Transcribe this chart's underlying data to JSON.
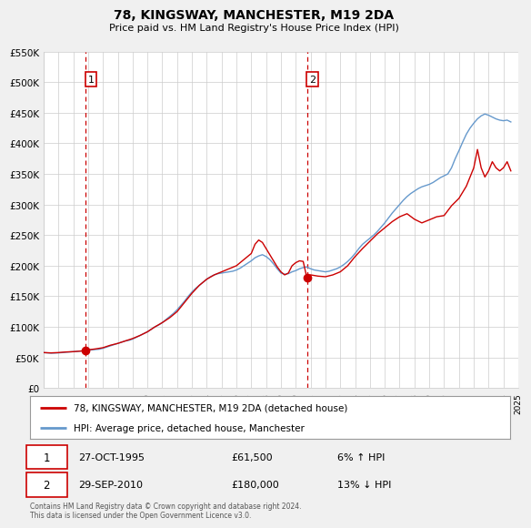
{
  "title": "78, KINGSWAY, MANCHESTER, M19 2DA",
  "subtitle": "Price paid vs. HM Land Registry's House Price Index (HPI)",
  "legend_entry1": "78, KINGSWAY, MANCHESTER, M19 2DA (detached house)",
  "legend_entry2": "HPI: Average price, detached house, Manchester",
  "annotation1_label": "1",
  "annotation1_date": "27-OCT-1995",
  "annotation1_price": "£61,500",
  "annotation1_hpi": "6% ↑ HPI",
  "annotation2_label": "2",
  "annotation2_date": "29-SEP-2010",
  "annotation2_price": "£180,000",
  "annotation2_hpi": "13% ↓ HPI",
  "sale1_year": 1995.82,
  "sale1_value": 61500,
  "sale2_year": 2010.75,
  "sale2_value": 180000,
  "vline1_year": 1995.82,
  "vline2_year": 2010.75,
  "xmin": 1993,
  "xmax": 2025,
  "ymin": 0,
  "ymax": 550000,
  "ytick_values": [
    0,
    50000,
    100000,
    150000,
    200000,
    250000,
    300000,
    350000,
    400000,
    450000,
    500000,
    550000
  ],
  "ytick_labels": [
    "£0",
    "£50K",
    "£100K",
    "£150K",
    "£200K",
    "£250K",
    "£300K",
    "£350K",
    "£400K",
    "£450K",
    "£500K",
    "£550K"
  ],
  "background_color": "#f0f0f0",
  "plot_bg_color": "#ffffff",
  "red_line_color": "#cc0000",
  "blue_line_color": "#6699cc",
  "vline_color": "#cc0000",
  "grid_color": "#cccccc",
  "footer_text": "Contains HM Land Registry data © Crown copyright and database right 2024.\nThis data is licensed under the Open Government Licence v3.0.",
  "hpi_data": [
    [
      1993.0,
      58000
    ],
    [
      1993.25,
      57500
    ],
    [
      1993.5,
      57000
    ],
    [
      1993.75,
      57200
    ],
    [
      1994.0,
      57500
    ],
    [
      1994.25,
      58000
    ],
    [
      1994.5,
      58500
    ],
    [
      1994.75,
      59000
    ],
    [
      1995.0,
      59500
    ],
    [
      1995.25,
      60000
    ],
    [
      1995.5,
      60500
    ],
    [
      1995.75,
      61000
    ],
    [
      1996.0,
      62000
    ],
    [
      1996.25,
      62500
    ],
    [
      1996.5,
      63000
    ],
    [
      1996.75,
      63500
    ],
    [
      1997.0,
      65000
    ],
    [
      1997.25,
      67000
    ],
    [
      1997.5,
      69000
    ],
    [
      1997.75,
      71000
    ],
    [
      1998.0,
      73000
    ],
    [
      1998.25,
      75000
    ],
    [
      1998.5,
      77000
    ],
    [
      1998.75,
      78000
    ],
    [
      1999.0,
      80000
    ],
    [
      1999.25,
      83000
    ],
    [
      1999.5,
      86000
    ],
    [
      1999.75,
      89000
    ],
    [
      2000.0,
      92000
    ],
    [
      2000.25,
      96000
    ],
    [
      2000.5,
      100000
    ],
    [
      2000.75,
      103000
    ],
    [
      2001.0,
      107000
    ],
    [
      2001.25,
      112000
    ],
    [
      2001.5,
      117000
    ],
    [
      2001.75,
      122000
    ],
    [
      2002.0,
      128000
    ],
    [
      2002.25,
      135000
    ],
    [
      2002.5,
      142000
    ],
    [
      2002.75,
      150000
    ],
    [
      2003.0,
      157000
    ],
    [
      2003.25,
      163000
    ],
    [
      2003.5,
      168000
    ],
    [
      2003.75,
      173000
    ],
    [
      2004.0,
      178000
    ],
    [
      2004.25,
      182000
    ],
    [
      2004.5,
      185000
    ],
    [
      2004.75,
      187000
    ],
    [
      2005.0,
      188000
    ],
    [
      2005.25,
      189000
    ],
    [
      2005.5,
      190000
    ],
    [
      2005.75,
      191000
    ],
    [
      2006.0,
      193000
    ],
    [
      2006.25,
      196000
    ],
    [
      2006.5,
      200000
    ],
    [
      2006.75,
      204000
    ],
    [
      2007.0,
      208000
    ],
    [
      2007.25,
      213000
    ],
    [
      2007.5,
      216000
    ],
    [
      2007.75,
      218000
    ],
    [
      2008.0,
      215000
    ],
    [
      2008.25,
      210000
    ],
    [
      2008.5,
      203000
    ],
    [
      2008.75,
      195000
    ],
    [
      2009.0,
      188000
    ],
    [
      2009.25,
      186000
    ],
    [
      2009.5,
      187000
    ],
    [
      2009.75,
      190000
    ],
    [
      2010.0,
      192000
    ],
    [
      2010.25,
      195000
    ],
    [
      2010.5,
      197000
    ],
    [
      2010.75,
      198000
    ],
    [
      2011.0,
      195000
    ],
    [
      2011.25,
      193000
    ],
    [
      2011.5,
      192000
    ],
    [
      2011.75,
      191000
    ],
    [
      2012.0,
      190000
    ],
    [
      2012.25,
      191000
    ],
    [
      2012.5,
      193000
    ],
    [
      2012.75,
      195000
    ],
    [
      2013.0,
      198000
    ],
    [
      2013.25,
      202000
    ],
    [
      2013.5,
      207000
    ],
    [
      2013.75,
      213000
    ],
    [
      2014.0,
      220000
    ],
    [
      2014.25,
      228000
    ],
    [
      2014.5,
      235000
    ],
    [
      2014.75,
      240000
    ],
    [
      2015.0,
      245000
    ],
    [
      2015.25,
      250000
    ],
    [
      2015.5,
      256000
    ],
    [
      2015.75,
      263000
    ],
    [
      2016.0,
      270000
    ],
    [
      2016.25,
      278000
    ],
    [
      2016.5,
      286000
    ],
    [
      2016.75,
      293000
    ],
    [
      2017.0,
      300000
    ],
    [
      2017.25,
      307000
    ],
    [
      2017.5,
      313000
    ],
    [
      2017.75,
      318000
    ],
    [
      2018.0,
      322000
    ],
    [
      2018.25,
      326000
    ],
    [
      2018.5,
      329000
    ],
    [
      2018.75,
      331000
    ],
    [
      2019.0,
      333000
    ],
    [
      2019.25,
      336000
    ],
    [
      2019.5,
      340000
    ],
    [
      2019.75,
      344000
    ],
    [
      2020.0,
      347000
    ],
    [
      2020.25,
      350000
    ],
    [
      2020.5,
      360000
    ],
    [
      2020.75,
      375000
    ],
    [
      2021.0,
      388000
    ],
    [
      2021.25,
      402000
    ],
    [
      2021.5,
      415000
    ],
    [
      2021.75,
      425000
    ],
    [
      2022.0,
      433000
    ],
    [
      2022.25,
      440000
    ],
    [
      2022.5,
      445000
    ],
    [
      2022.75,
      448000
    ],
    [
      2023.0,
      446000
    ],
    [
      2023.25,
      443000
    ],
    [
      2023.5,
      440000
    ],
    [
      2023.75,
      438000
    ],
    [
      2024.0,
      437000
    ],
    [
      2024.25,
      438000
    ],
    [
      2024.5,
      435000
    ]
  ],
  "red_data": [
    [
      1993.0,
      58000
    ],
    [
      1993.5,
      57500
    ],
    [
      1994.0,
      58000
    ],
    [
      1994.5,
      59000
    ],
    [
      1995.0,
      59500
    ],
    [
      1995.5,
      60500
    ],
    [
      1995.82,
      61500
    ],
    [
      1996.0,
      62500
    ],
    [
      1996.5,
      64000
    ],
    [
      1997.0,
      66000
    ],
    [
      1997.5,
      70000
    ],
    [
      1998.0,
      73000
    ],
    [
      1998.5,
      77000
    ],
    [
      1999.0,
      81000
    ],
    [
      1999.5,
      86000
    ],
    [
      2000.0,
      92000
    ],
    [
      2000.5,
      100000
    ],
    [
      2001.0,
      107000
    ],
    [
      2001.5,
      115000
    ],
    [
      2002.0,
      125000
    ],
    [
      2002.5,
      140000
    ],
    [
      2003.0,
      155000
    ],
    [
      2003.5,
      168000
    ],
    [
      2004.0,
      178000
    ],
    [
      2004.5,
      185000
    ],
    [
      2005.0,
      190000
    ],
    [
      2005.5,
      195000
    ],
    [
      2006.0,
      200000
    ],
    [
      2006.5,
      210000
    ],
    [
      2007.0,
      220000
    ],
    [
      2007.25,
      235000
    ],
    [
      2007.5,
      242000
    ],
    [
      2007.75,
      238000
    ],
    [
      2008.0,
      228000
    ],
    [
      2008.25,
      218000
    ],
    [
      2008.5,
      208000
    ],
    [
      2008.75,
      198000
    ],
    [
      2009.0,
      190000
    ],
    [
      2009.25,
      185000
    ],
    [
      2009.5,
      188000
    ],
    [
      2009.75,
      200000
    ],
    [
      2010.0,
      205000
    ],
    [
      2010.25,
      208000
    ],
    [
      2010.5,
      207000
    ],
    [
      2010.75,
      180000
    ],
    [
      2011.0,
      185000
    ],
    [
      2011.5,
      183000
    ],
    [
      2012.0,
      182000
    ],
    [
      2012.5,
      185000
    ],
    [
      2013.0,
      190000
    ],
    [
      2013.5,
      200000
    ],
    [
      2014.0,
      215000
    ],
    [
      2014.5,
      228000
    ],
    [
      2015.0,
      240000
    ],
    [
      2015.5,
      252000
    ],
    [
      2016.0,
      262000
    ],
    [
      2016.5,
      272000
    ],
    [
      2017.0,
      280000
    ],
    [
      2017.5,
      285000
    ],
    [
      2018.0,
      276000
    ],
    [
      2018.5,
      270000
    ],
    [
      2019.0,
      275000
    ],
    [
      2019.5,
      280000
    ],
    [
      2020.0,
      282000
    ],
    [
      2020.5,
      298000
    ],
    [
      2021.0,
      310000
    ],
    [
      2021.5,
      330000
    ],
    [
      2022.0,
      360000
    ],
    [
      2022.25,
      390000
    ],
    [
      2022.5,
      360000
    ],
    [
      2022.75,
      345000
    ],
    [
      2023.0,
      355000
    ],
    [
      2023.25,
      370000
    ],
    [
      2023.5,
      360000
    ],
    [
      2023.75,
      355000
    ],
    [
      2024.0,
      360000
    ],
    [
      2024.25,
      370000
    ],
    [
      2024.5,
      355000
    ]
  ]
}
